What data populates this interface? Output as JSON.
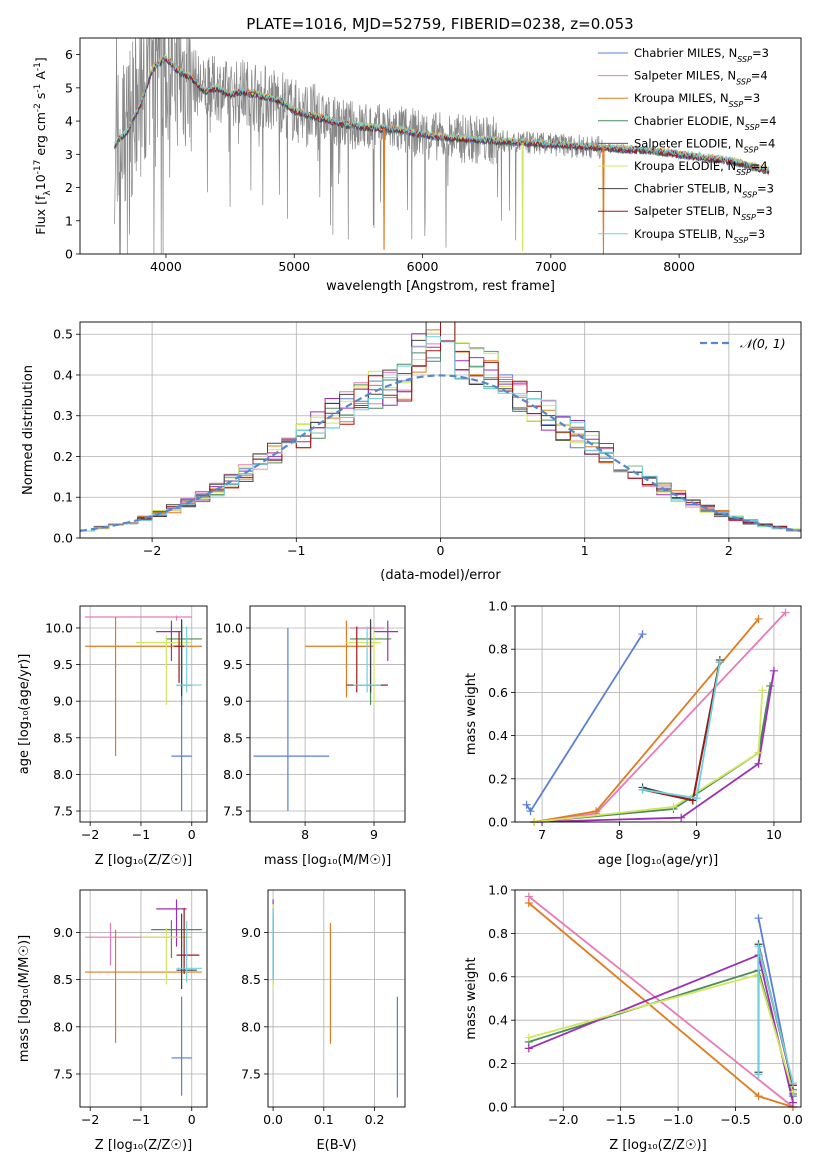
{
  "figure": {
    "title": "PLATE=1016, MJD=52759, FIBERID=0238, z=0.053"
  },
  "colors": {
    "chabrier_miles": "#5a7fd6",
    "salpeter_miles": "#e87ab8",
    "kroupa_miles": "#e07b20",
    "chabrier_elodie": "#4c8c5a",
    "salpeter_elodie": "#9b30b4",
    "kroupa_elodie": "#d0e860",
    "chabrier_stelib": "#444444",
    "salpeter_stelib": "#a01818",
    "kroupa_stelib": "#70d0e0",
    "normal_curve": "#5588cc",
    "data_gray": "#888888",
    "grid": "#b0b0b0"
  },
  "chart_data": [
    {
      "id": "spectrum",
      "type": "line",
      "title": "PLATE=1016, MJD=52759, FIBERID=0238, z=0.053",
      "xlabel": "wavelength [Angstrom, rest frame]",
      "ylabel_parts": [
        "Flux [f",
        "λ",
        "10",
        "-17",
        " erg cm",
        "-2",
        " s",
        "-1",
        " A",
        "-1",
        "]"
      ],
      "xlim": [
        3330,
        8950
      ],
      "ylim": [
        0,
        6.5
      ],
      "xticks": [
        4000,
        5000,
        6000,
        7000,
        8000
      ],
      "yticks": [
        0,
        1,
        2,
        3,
        4,
        5,
        6
      ],
      "grid": false,
      "legend_position": "top-right",
      "legend": [
        {
          "name": "Chabrier MILES, N",
          "sub": "SSP",
          "tail": "=3",
          "color": "#5a7fd6"
        },
        {
          "name": "Salpeter MILES, N",
          "sub": "SSP",
          "tail": "=4",
          "color": "#e87ab8"
        },
        {
          "name": "Kroupa MILES, N",
          "sub": "SSP",
          "tail": "=3",
          "color": "#e07b20"
        },
        {
          "name": "Chabrier ELODIE, N",
          "sub": "SSP",
          "tail": "=4",
          "color": "#4c8c5a"
        },
        {
          "name": "Salpeter ELODIE, N",
          "sub": "SSP",
          "tail": "=4",
          "color": "#9b30b4"
        },
        {
          "name": "Kroupa ELODIE, N",
          "sub": "SSP",
          "tail": "=4",
          "color": "#d0e860"
        },
        {
          "name": "Chabrier STELIB, N",
          "sub": "SSP",
          "tail": "=3",
          "color": "#444444"
        },
        {
          "name": "Salpeter STELIB, N",
          "sub": "SSP",
          "tail": "=3",
          "color": "#a01818"
        },
        {
          "name": "Kroupa STELIB, N",
          "sub": "SSP",
          "tail": "=3",
          "color": "#70d0e0"
        }
      ],
      "model_continuum": {
        "x": [
          3600,
          3700,
          3800,
          3900,
          4000,
          4100,
          4200,
          4300,
          4400,
          4500,
          4600,
          4700,
          4800,
          4900,
          5000,
          5200,
          5400,
          5600,
          5800,
          6000,
          6200,
          6400,
          6600,
          6800,
          7000,
          7200,
          7400,
          7600,
          7800,
          8000,
          8200,
          8400,
          8700
        ],
        "y": [
          3.3,
          3.7,
          4.5,
          5.6,
          5.9,
          5.5,
          5.3,
          4.9,
          5.0,
          4.8,
          4.9,
          4.8,
          4.7,
          4.6,
          4.3,
          4.1,
          3.9,
          3.8,
          3.75,
          3.6,
          3.5,
          3.45,
          3.4,
          3.35,
          3.3,
          3.25,
          3.2,
          3.15,
          3.1,
          3.0,
          2.9,
          2.8,
          2.5
        ]
      },
      "spikes": [
        {
          "x": 5700,
          "y": 0.12,
          "color": "#e07b20"
        },
        {
          "x": 6780,
          "y": 0.08,
          "color": "#d0e860"
        },
        {
          "x": 7410,
          "y": 0.0,
          "color": "#e07b20"
        }
      ]
    },
    {
      "id": "residuals",
      "type": "bar",
      "xlabel": "(data-model)/error",
      "ylabel": "Normed distribution",
      "xlim": [
        -2.5,
        2.5
      ],
      "ylim": [
        0,
        0.53
      ],
      "xticks": [
        -2,
        -1,
        0,
        1,
        2
      ],
      "yticks": [
        0.0,
        0.1,
        0.2,
        0.3,
        0.4,
        0.5
      ],
      "grid": true,
      "legend_position": "top-right",
      "legend": [
        {
          "name": "𝒩(0, 1)",
          "style": "dashed",
          "color": "#5588cc"
        }
      ],
      "bin_width": 0.1,
      "bin_start": -2.5
    },
    {
      "id": "age_vs_Z",
      "type": "scatter",
      "xlabel": "Z [log₁₀(Z/Z☉)]",
      "ylabel": "age  [log₁₀(age/yr)]",
      "xlim": [
        -2.2,
        0.3
      ],
      "ylim": [
        7.35,
        10.3
      ],
      "xticks": [
        -2,
        -1,
        0
      ],
      "yticks": [
        7.5,
        8.0,
        8.5,
        9.0,
        9.5,
        10.0
      ],
      "grid": true,
      "crosses": [
        {
          "x": -0.2,
          "y": 8.25,
          "dx": [
            0.2,
            0.2
          ],
          "dy": [
            0.75,
            1.85
          ],
          "color": "#5a7fd6"
        },
        {
          "x": -0.3,
          "y": 10.15,
          "dx": [
            1.8,
            0.3
          ],
          "dy": [
            0.05,
            0.02
          ],
          "color": "#e87ab8"
        },
        {
          "x": -1.5,
          "y": 9.75,
          "dx": [
            0.6,
            1.7
          ],
          "dy": [
            1.5,
            0.4
          ],
          "color": "#e07b20"
        },
        {
          "x": -0.2,
          "y": 9.85,
          "dx": [
            0.3,
            0.4
          ],
          "dy": [
            0.9,
            0.2
          ],
          "color": "#4c8c5a"
        },
        {
          "x": -0.4,
          "y": 9.95,
          "dx": [
            0.3,
            0.2
          ],
          "dy": [
            0.4,
            0.15
          ],
          "color": "#9b30b4"
        },
        {
          "x": -0.5,
          "y": 9.8,
          "dx": [
            0.6,
            0.5
          ],
          "dy": [
            0.85,
            0.1
          ],
          "color": "#d0e860"
        },
        {
          "x": -0.2,
          "y": 9.22,
          "dx": [
            0.1,
            0.2
          ],
          "dy": [
            0.15,
            0.9
          ],
          "color": "#444444"
        },
        {
          "x": -0.25,
          "y": 9.75,
          "dx": [
            0.1,
            0.1
          ],
          "dy": [
            0.5,
            0.2
          ],
          "color": "#a01818"
        },
        {
          "x": -0.1,
          "y": 9.22,
          "dx": [
            0.2,
            0.3
          ],
          "dy": [
            0.1,
            0.8
          ],
          "color": "#70d0e0"
        }
      ]
    },
    {
      "id": "age_vs_mass",
      "type": "scatter",
      "xlabel": "mass [log₁₀(M/M☉)]",
      "ylabel": "",
      "xlim": [
        7.2,
        9.45
      ],
      "ylim": [
        7.35,
        10.3
      ],
      "xticks": [
        8,
        9
      ],
      "yticks": [
        7.5,
        8.0,
        8.5,
        9.0,
        9.5,
        10.0
      ],
      "grid": true,
      "crosses": [
        {
          "x": 7.75,
          "y": 8.25,
          "dx": [
            0.5,
            0.6
          ],
          "dy": [
            0.75,
            1.75
          ],
          "color": "#5a7fd6"
        },
        {
          "x": 8.95,
          "y": 10.0,
          "dx": [
            0.3,
            0.2
          ],
          "dy": [
            0.9,
            0.1
          ],
          "color": "#e87ab8"
        },
        {
          "x": 8.6,
          "y": 9.75,
          "dx": [
            0.6,
            0.4
          ],
          "dy": [
            0.7,
            0.35
          ],
          "color": "#e07b20"
        },
        {
          "x": 8.95,
          "y": 9.85,
          "dx": [
            0.3,
            0.3
          ],
          "dy": [
            0.9,
            0.2
          ],
          "color": "#4c8c5a"
        },
        {
          "x": 9.2,
          "y": 9.95,
          "dx": [
            0.2,
            0.15
          ],
          "dy": [
            0.4,
            0.15
          ],
          "color": "#9b30b4"
        },
        {
          "x": 9.0,
          "y": 9.8,
          "dx": [
            0.4,
            0.1
          ],
          "dy": [
            0.85,
            0.15
          ],
          "color": "#d0e860"
        },
        {
          "x": 8.95,
          "y": 9.22,
          "dx": [
            0.25,
            0.25
          ],
          "dy": [
            0.1,
            0.9
          ],
          "color": "#444444"
        },
        {
          "x": 8.75,
          "y": 9.22,
          "dx": [
            0.15,
            0.45
          ],
          "dy": [
            0.1,
            0.8
          ],
          "color": "#a01818"
        },
        {
          "x": 8.9,
          "y": 9.22,
          "dx": [
            0.2,
            0.2
          ],
          "dy": [
            0.1,
            0.8
          ],
          "color": "#70d0e0"
        }
      ]
    },
    {
      "id": "weight_vs_age",
      "type": "line",
      "xlabel": "age  [log₁₀(age/yr)]",
      "ylabel": "mass weight",
      "xlim": [
        6.65,
        10.35
      ],
      "ylim": [
        0,
        1.0
      ],
      "xticks": [
        7,
        8,
        9,
        10
      ],
      "yticks": [
        0.0,
        0.2,
        0.4,
        0.6,
        0.8,
        1.0
      ],
      "grid": true,
      "series": [
        {
          "color": "#5a7fd6",
          "x": [
            6.8,
            6.85,
            8.3
          ],
          "y": [
            0.08,
            0.05,
            0.87
          ]
        },
        {
          "color": "#e87ab8",
          "x": [
            6.9,
            7.7,
            10.15
          ],
          "y": [
            0.0,
            0.04,
            0.97
          ]
        },
        {
          "color": "#e07b20",
          "x": [
            6.9,
            7.7,
            9.8
          ],
          "y": [
            0.0,
            0.05,
            0.94
          ]
        },
        {
          "color": "#4c8c5a",
          "x": [
            6.9,
            8.7,
            9.8,
            9.95
          ],
          "y": [
            0.0,
            0.06,
            0.32,
            0.63
          ]
        },
        {
          "color": "#9b30b4",
          "x": [
            6.9,
            8.8,
            9.8,
            10.0
          ],
          "y": [
            0.0,
            0.02,
            0.27,
            0.7
          ]
        },
        {
          "color": "#d0e860",
          "x": [
            6.9,
            8.7,
            9.8,
            9.85
          ],
          "y": [
            0.0,
            0.07,
            0.32,
            0.61
          ]
        },
        {
          "color": "#444444",
          "x": [
            8.3,
            8.95,
            9.3
          ],
          "y": [
            0.16,
            0.1,
            0.75
          ]
        },
        {
          "color": "#a01818",
          "x": [
            8.3,
            8.95,
            9.3
          ],
          "y": [
            0.15,
            0.1,
            0.74
          ]
        },
        {
          "color": "#70d0e0",
          "x": [
            8.3,
            9.0,
            9.3
          ],
          "y": [
            0.15,
            0.11,
            0.74
          ]
        }
      ]
    },
    {
      "id": "mass_vs_Z",
      "type": "scatter",
      "xlabel": "Z [log₁₀(Z/Z☉)]",
      "ylabel": "mass [log₁₀(M/M☉)]",
      "xlim": [
        -2.2,
        0.3
      ],
      "ylim": [
        7.15,
        9.45
      ],
      "xticks": [
        -2,
        -1,
        0
      ],
      "yticks": [
        7.5,
        8.0,
        8.5,
        9.0
      ],
      "grid": true,
      "crosses": [
        {
          "x": -0.2,
          "y": 7.67,
          "dx": [
            0.2,
            0.2
          ],
          "dy": [
            0.4,
            0.65
          ],
          "color": "#5a7fd6"
        },
        {
          "x": -1.6,
          "y": 8.95,
          "dx": [
            0.5,
            1.6
          ],
          "dy": [
            0.3,
            0.15
          ],
          "color": "#e87ab8"
        },
        {
          "x": -1.5,
          "y": 8.58,
          "dx": [
            0.6,
            1.7
          ],
          "dy": [
            0.75,
            0.45
          ],
          "color": "#e07b20"
        },
        {
          "x": -0.4,
          "y": 9.03,
          "dx": [
            0.4,
            0.6
          ],
          "dy": [
            0.3,
            0.1
          ],
          "color": "#4c8c5a"
        },
        {
          "x": -0.3,
          "y": 9.25,
          "dx": [
            0.4,
            0.2
          ],
          "dy": [
            0.4,
            0.1
          ],
          "color": "#9b30b4"
        },
        {
          "x": -0.5,
          "y": 8.95,
          "dx": [
            0.5,
            0.5
          ],
          "dy": [
            0.5,
            0.1
          ],
          "color": "#d0e860"
        },
        {
          "x": -0.2,
          "y": 8.6,
          "dx": [
            0.1,
            0.3
          ],
          "dy": [
            0.2,
            0.6
          ],
          "color": "#444444"
        },
        {
          "x": -0.15,
          "y": 8.76,
          "dx": [
            0.15,
            0.3
          ],
          "dy": [
            0.2,
            0.5
          ],
          "color": "#a01818"
        },
        {
          "x": -0.1,
          "y": 8.62,
          "dx": [
            0.2,
            0.3
          ],
          "dy": [
            0.15,
            0.5
          ],
          "color": "#70d0e0"
        }
      ]
    },
    {
      "id": "mass_vs_EBV",
      "type": "scatter",
      "xlabel": "E(B-V)",
      "ylabel": "",
      "xlim": [
        -0.01,
        0.26
      ],
      "ylim": [
        7.15,
        9.45
      ],
      "xticks": [
        0.0,
        0.1,
        0.2
      ],
      "yticks": [
        7.5,
        8.0,
        8.5,
        9.0
      ],
      "grid": true,
      "vbars": [
        {
          "x": 0.245,
          "y": [
            7.25,
            8.32
          ],
          "color": "#5a7fd6"
        },
        {
          "x": 0.113,
          "y": [
            7.82,
            9.1
          ],
          "color": "#e07b20"
        },
        {
          "x": 0.0,
          "y": [
            8.45,
            9.35
          ],
          "color": "#9b30b4"
        },
        {
          "x": 0.0,
          "y": [
            8.4,
            9.3
          ],
          "color": "#d0e860"
        },
        {
          "x": 0.0,
          "y": [
            8.5,
            9.2
          ],
          "color": "#4c8c5a"
        },
        {
          "x": 0.0,
          "y": [
            8.5,
            9.25
          ],
          "color": "#70d0e0"
        }
      ]
    },
    {
      "id": "weight_vs_Z",
      "type": "line",
      "xlabel": "Z [log₁₀(Z/Z☉)]",
      "ylabel": "mass weight",
      "xlim": [
        -2.42,
        0.07
      ],
      "ylim": [
        0,
        1.0
      ],
      "xticks": [
        -2.0,
        -1.5,
        -1.0,
        -0.5,
        0.0
      ],
      "yticks": [
        0.0,
        0.2,
        0.4,
        0.6,
        0.8,
        1.0
      ],
      "grid": true,
      "series": [
        {
          "color": "#5a7fd6",
          "x": [
            -0.3,
            0.0,
            0.0
          ],
          "y": [
            0.87,
            0.08,
            0.05
          ]
        },
        {
          "color": "#e87ab8",
          "x": [
            -2.3,
            0.0
          ],
          "y": [
            0.97,
            0.0
          ]
        },
        {
          "color": "#e07b20",
          "x": [
            -2.3,
            -0.3,
            0.0
          ],
          "y": [
            0.94,
            0.05,
            0.0
          ]
        },
        {
          "color": "#4c8c5a",
          "x": [
            -2.3,
            -0.3,
            0.0
          ],
          "y": [
            0.3,
            0.63,
            0.06
          ]
        },
        {
          "color": "#9b30b4",
          "x": [
            -2.3,
            -0.3,
            0.0
          ],
          "y": [
            0.27,
            0.7,
            0.02
          ]
        },
        {
          "color": "#d0e860",
          "x": [
            -2.3,
            -0.3,
            0.0
          ],
          "y": [
            0.32,
            0.61,
            0.07
          ]
        },
        {
          "color": "#444444",
          "x": [
            -0.3,
            -0.3,
            0.0
          ],
          "y": [
            0.16,
            0.75,
            0.1
          ]
        },
        {
          "color": "#a01818",
          "x": [
            -0.3,
            -0.3,
            0.0
          ],
          "y": [
            0.15,
            0.74,
            0.1
          ]
        },
        {
          "color": "#70d0e0",
          "x": [
            -0.3,
            -0.3,
            0.0
          ],
          "y": [
            0.15,
            0.74,
            0.11
          ]
        }
      ]
    }
  ]
}
